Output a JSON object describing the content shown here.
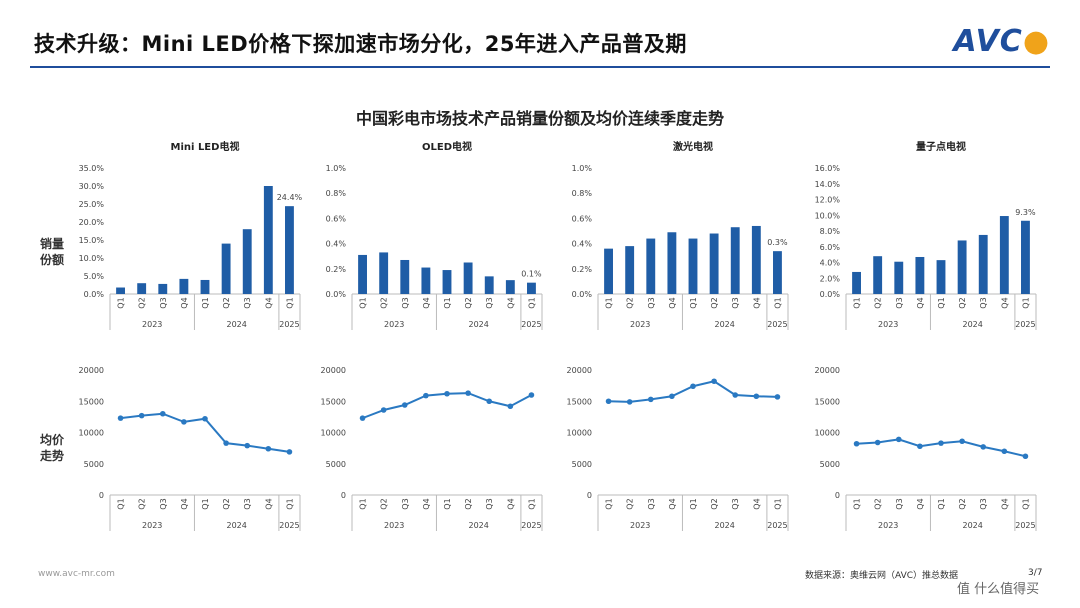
{
  "header": {
    "title": "技术升级：Mini LED价格下探加速市场分化，25年进入产品普及期",
    "logo": "AVC"
  },
  "section_title": "中国彩电市场技术产品销量份额及均价连续季度走势",
  "row_labels": {
    "share": [
      "销量",
      "份额"
    ],
    "price": [
      "均价",
      "走势"
    ]
  },
  "colors": {
    "bar": "#1f5da6",
    "line": "#2a79c2",
    "brand": "#1f4e9c",
    "accent": "#f0a31a"
  },
  "footer": {
    "url": "www.avc-mr.com",
    "source": "数据来源：奥维云网（AVC）推总数据",
    "page": "3/7",
    "badge": "值 什么值得买"
  },
  "chart_data": [
    {
      "type": "bar",
      "title": "Mini LED电视",
      "categories": [
        "Q1",
        "Q2",
        "Q3",
        "Q4",
        "Q1",
        "Q2",
        "Q3",
        "Q4",
        "Q1"
      ],
      "year_groups": [
        {
          "label": "2023",
          "count": 4
        },
        {
          "label": "2024",
          "count": 4
        },
        {
          "label": "2025",
          "count": 1
        }
      ],
      "values": [
        1.8,
        3.0,
        2.8,
        4.2,
        3.9,
        14.0,
        18.0,
        30.0,
        24.4
      ],
      "ylim": [
        0,
        35
      ],
      "yticks": [
        "0.0%",
        "5.0%",
        "10.0%",
        "15.0%",
        "20.0%",
        "25.0%",
        "30.0%",
        "35.0%"
      ],
      "data_label": "24.4%"
    },
    {
      "type": "bar",
      "title": "OLED电视",
      "categories": [
        "Q1",
        "Q2",
        "Q3",
        "Q4",
        "Q1",
        "Q2",
        "Q3",
        "Q4",
        "Q1"
      ],
      "year_groups": [
        {
          "label": "2023",
          "count": 4
        },
        {
          "label": "2024",
          "count": 4
        },
        {
          "label": "2025",
          "count": 1
        }
      ],
      "values": [
        0.31,
        0.33,
        0.27,
        0.21,
        0.19,
        0.25,
        0.14,
        0.11,
        0.09
      ],
      "ylim": [
        0,
        1.0
      ],
      "yticks": [
        "0.0%",
        "0.2%",
        "0.4%",
        "0.6%",
        "0.8%",
        "1.0%"
      ],
      "data_label": "0.1%"
    },
    {
      "type": "bar",
      "title": "激光电视",
      "categories": [
        "Q1",
        "Q2",
        "Q3",
        "Q4",
        "Q1",
        "Q2",
        "Q3",
        "Q4",
        "Q1"
      ],
      "year_groups": [
        {
          "label": "2023",
          "count": 4
        },
        {
          "label": "2024",
          "count": 4
        },
        {
          "label": "2025",
          "count": 1
        }
      ],
      "values": [
        0.36,
        0.38,
        0.44,
        0.49,
        0.44,
        0.48,
        0.53,
        0.54,
        0.34
      ],
      "ylim": [
        0,
        1.0
      ],
      "yticks": [
        "0.0%",
        "0.2%",
        "0.4%",
        "0.6%",
        "0.8%",
        "1.0%"
      ],
      "data_label": "0.3%"
    },
    {
      "type": "bar",
      "title": "量子点电视",
      "categories": [
        "Q1",
        "Q2",
        "Q3",
        "Q4",
        "Q1",
        "Q2",
        "Q3",
        "Q4",
        "Q1"
      ],
      "year_groups": [
        {
          "label": "2023",
          "count": 4
        },
        {
          "label": "2024",
          "count": 4
        },
        {
          "label": "2025",
          "count": 1
        }
      ],
      "values": [
        2.8,
        4.8,
        4.1,
        4.7,
        4.3,
        6.8,
        7.5,
        9.9,
        9.3
      ],
      "ylim": [
        0,
        16
      ],
      "yticks": [
        "0.0%",
        "2.0%",
        "4.0%",
        "6.0%",
        "8.0%",
        "10.0%",
        "12.0%",
        "14.0%",
        "16.0%"
      ],
      "data_label": "9.3%"
    },
    {
      "type": "line",
      "categories": [
        "Q1",
        "Q2",
        "Q3",
        "Q4",
        "Q1",
        "Q2",
        "Q3",
        "Q4",
        "Q1"
      ],
      "year_groups": [
        {
          "label": "2023",
          "count": 4
        },
        {
          "label": "2024",
          "count": 4
        },
        {
          "label": "2025",
          "count": 1
        }
      ],
      "values": [
        12300,
        12700,
        13000,
        11700,
        12200,
        8300,
        7900,
        7400,
        6900
      ],
      "ylim": [
        0,
        20000
      ],
      "yticks": [
        "0",
        "5000",
        "10000",
        "15000",
        "20000"
      ]
    },
    {
      "type": "line",
      "categories": [
        "Q1",
        "Q2",
        "Q3",
        "Q4",
        "Q1",
        "Q2",
        "Q3",
        "Q4",
        "Q1"
      ],
      "year_groups": [
        {
          "label": "2023",
          "count": 4
        },
        {
          "label": "2024",
          "count": 4
        },
        {
          "label": "2025",
          "count": 1
        }
      ],
      "values": [
        12300,
        13600,
        14400,
        15900,
        16200,
        16300,
        15000,
        14200,
        16000
      ],
      "ylim": [
        0,
        20000
      ],
      "yticks": [
        "0",
        "5000",
        "10000",
        "15000",
        "20000"
      ]
    },
    {
      "type": "line",
      "categories": [
        "Q1",
        "Q2",
        "Q3",
        "Q4",
        "Q1",
        "Q2",
        "Q3",
        "Q4",
        "Q1"
      ],
      "year_groups": [
        {
          "label": "2023",
          "count": 4
        },
        {
          "label": "2024",
          "count": 4
        },
        {
          "label": "2025",
          "count": 1
        }
      ],
      "values": [
        15000,
        14900,
        15300,
        15800,
        17400,
        18200,
        16000,
        15800,
        15700
      ],
      "ylim": [
        0,
        20000
      ],
      "yticks": [
        "0",
        "5000",
        "10000",
        "15000",
        "20000"
      ]
    },
    {
      "type": "line",
      "categories": [
        "Q1",
        "Q2",
        "Q3",
        "Q4",
        "Q1",
        "Q2",
        "Q3",
        "Q4",
        "Q1"
      ],
      "year_groups": [
        {
          "label": "2023",
          "count": 4
        },
        {
          "label": "2024",
          "count": 4
        },
        {
          "label": "2025",
          "count": 1
        }
      ],
      "values": [
        8200,
        8400,
        8900,
        7800,
        8300,
        8600,
        7700,
        7000,
        6200
      ],
      "ylim": [
        0,
        20000
      ],
      "yticks": [
        "0",
        "5000",
        "10000",
        "15000",
        "20000"
      ]
    }
  ]
}
